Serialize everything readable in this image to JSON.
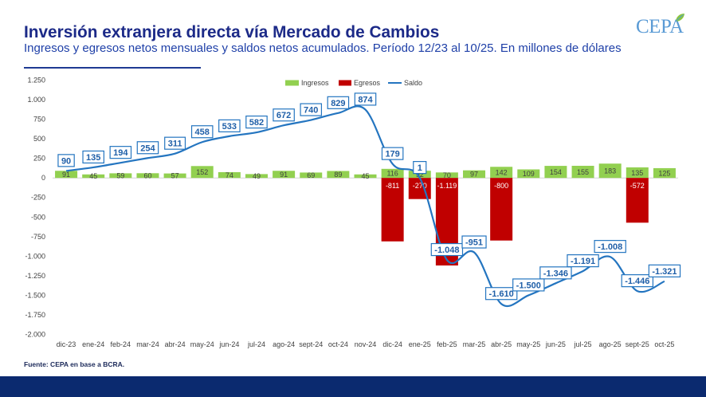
{
  "logo": {
    "text": "CEPA",
    "icon": "leaf-icon",
    "color": "#5b9bd5"
  },
  "footer": {
    "source": "Fuente: CEPA en base a BCRA."
  },
  "brand": {
    "title_color": "#1c2a88",
    "subtitle_color": "#1f40a8",
    "footer_bar_color": "#0b2a6f"
  },
  "chart_data": {
    "type": "bar",
    "title": "Inversión extranjera directa vía Mercado de Cambios",
    "subtitle": "Ingresos y egresos netos mensuales y saldos netos acumulados. Período 12/23 al 10/25. En millones de dólares",
    "xlabel": "",
    "ylabel": "",
    "ylim": [
      -2000,
      1250
    ],
    "grid": false,
    "legend": "top-center",
    "categories": [
      "dic-23",
      "ene-24",
      "feb-24",
      "mar-24",
      "abr-24",
      "may-24",
      "jun-24",
      "jul-24",
      "ago-24",
      "sept-24",
      "oct-24",
      "nov-24",
      "dic-24",
      "ene-25",
      "feb-25",
      "mar-25",
      "abr-25",
      "may-25",
      "jun-25",
      "jul-25",
      "ago-25",
      "sept-25",
      "oct-25"
    ],
    "yaxis": {
      "ticks": [
        1250,
        1000,
        750,
        500,
        250,
        0,
        -250,
        -500,
        -750,
        -1000,
        -1250,
        -1500,
        -1750,
        -2000
      ],
      "tick_labels": [
        "1.250",
        "1.000",
        "750",
        "500",
        "250",
        "0",
        "-250",
        "-500",
        "-750",
        "-1.000",
        "-1.250",
        "-1.500",
        "-1.750",
        "-2.000"
      ]
    },
    "series": [
      {
        "name": "Ingresos",
        "type": "bar",
        "color": "#92d050",
        "values": [
          91,
          45,
          59,
          60,
          57,
          152,
          74,
          49,
          91,
          69,
          89,
          45,
          116,
          92,
          70,
          97,
          142,
          109,
          154,
          155,
          183,
          135,
          125
        ],
        "labels": [
          "91",
          "45",
          "59",
          "60",
          "57",
          "152",
          "74",
          "49",
          "91",
          "69",
          "89",
          "45",
          "116",
          "92",
          "70",
          "97",
          "142",
          "109",
          "154",
          "155",
          "183",
          "135",
          "125"
        ]
      },
      {
        "name": "Egresos",
        "type": "bar",
        "color": "#c00000",
        "values": [
          null,
          null,
          null,
          null,
          null,
          null,
          null,
          null,
          null,
          null,
          null,
          null,
          -811,
          -270,
          -1119,
          null,
          -800,
          null,
          null,
          null,
          null,
          -572,
          null
        ],
        "labels": [
          null,
          null,
          null,
          null,
          null,
          null,
          null,
          null,
          null,
          null,
          null,
          null,
          "-811",
          "-270",
          "-1.119",
          null,
          "-800",
          null,
          null,
          null,
          null,
          "-572",
          null
        ]
      },
      {
        "name": "Saldo",
        "type": "line",
        "color": "#2475c0",
        "values": [
          90,
          135,
          194,
          254,
          311,
          458,
          533,
          582,
          672,
          740,
          829,
          874,
          179,
          1,
          -1048,
          -951,
          -1610,
          -1500,
          -1346,
          -1191,
          -1008,
          -1446,
          -1321
        ],
        "labels": [
          "90",
          "135",
          "194",
          "254",
          "311",
          "458",
          "533",
          "582",
          "672",
          "740",
          "829",
          "874",
          "179",
          "1",
          "-1.048",
          "-951",
          "-1.610",
          "-1.500",
          "-1.346",
          "-1.191",
          "-1.008",
          "-1.446",
          "-1.321"
        ]
      }
    ]
  }
}
